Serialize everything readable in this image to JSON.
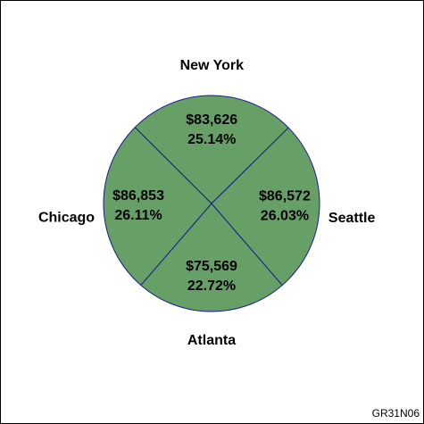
{
  "chart_data": {
    "type": "pie",
    "categories": [
      "Atlanta",
      "Chicago",
      "New York",
      "Seattle"
    ],
    "values": [
      75569,
      86853,
      83626,
      86572
    ],
    "value_labels": [
      "$75,569",
      "$86,853",
      "$83,626",
      "$86,572"
    ],
    "percent_labels": [
      "22.72%",
      "26.11%",
      "25.14%",
      "26.03%"
    ],
    "color": "#66a066",
    "edge_color": "#1c1c8c",
    "footnote": "GR31N06"
  }
}
